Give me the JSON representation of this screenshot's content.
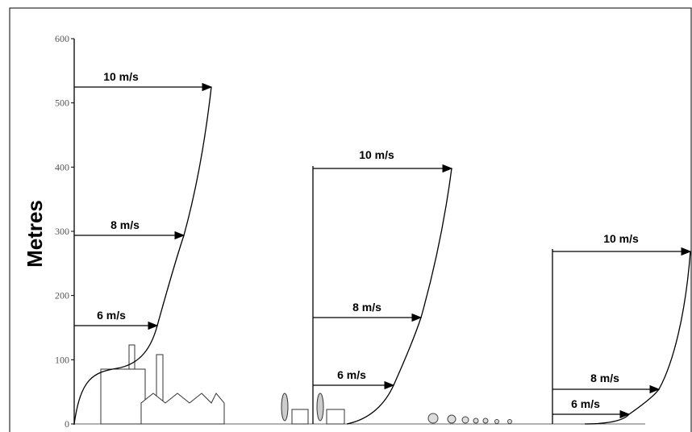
{
  "axis": {
    "label": "Metres",
    "ticks": [
      0,
      100,
      200,
      300,
      400,
      500,
      600
    ]
  },
  "profiles": [
    {
      "labels": [
        "10 m/s",
        "8 m/s",
        "6 m/s"
      ]
    },
    {
      "labels": [
        "10 m/s",
        "8 m/s",
        "6 m/s"
      ]
    },
    {
      "labels": [
        "10 m/s",
        "8 m/s",
        "6 m/s"
      ]
    }
  ]
}
